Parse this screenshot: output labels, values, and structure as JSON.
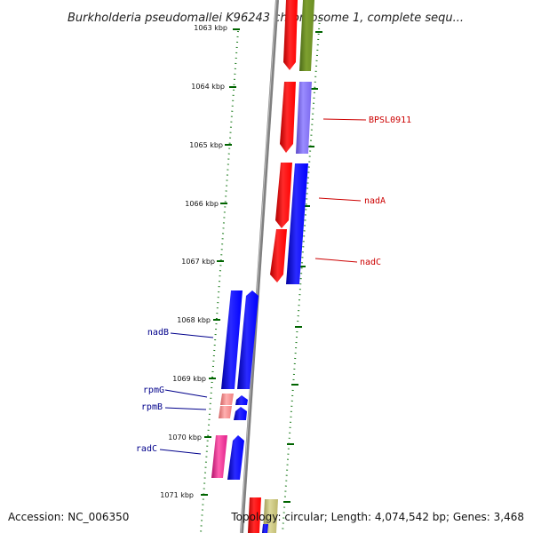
{
  "title": "Burkholderia pseudomallei K96243 chromosome 1, complete sequ...",
  "footer": {
    "accession": "Accession: NC_006350",
    "topology": "Topology: circular; Length: 4,074,542 bp; Genes: 3,468"
  },
  "ticks": [
    "1063 kbp",
    "1064 kbp",
    "1065 kbp",
    "1066 kbp",
    "1067 kbp",
    "1068 kbp",
    "1069 kbp",
    "1070 kbp",
    "1071 kbp"
  ],
  "gene_labels": [
    {
      "text": "BPSL0911",
      "strand": "right"
    },
    {
      "text": "nadA",
      "strand": "right"
    },
    {
      "text": "nadC",
      "strand": "right"
    },
    {
      "text": "nadB",
      "strand": "left"
    },
    {
      "text": "rpmG",
      "strand": "left"
    },
    {
      "text": "rpmB",
      "strand": "left"
    },
    {
      "text": "radC",
      "strand": "left"
    }
  ],
  "colors": {
    "red": "#ff0000",
    "olive": "#6b8e23",
    "purple": "#7b68ee",
    "blue": "#0000ff",
    "pink": "#f08080",
    "magenta": "#e0208a",
    "tan": "#bdb76b",
    "backbone": "#808080",
    "tick_green": "#006400",
    "label_red": "#cc0000",
    "label_blue": "#00008b"
  }
}
